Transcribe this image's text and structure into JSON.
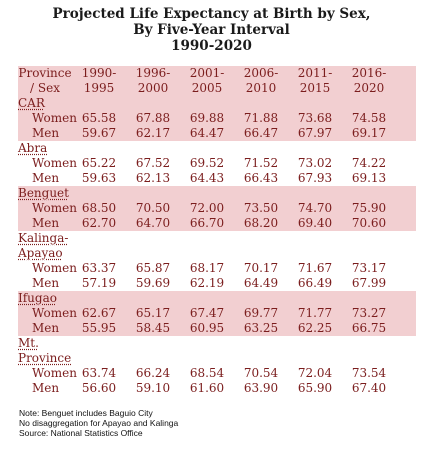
{
  "title": {
    "line1": "Projected Life Expectancy at Birth by Sex,",
    "line2": "By Five-Year Interval",
    "line3": "1990-2020"
  },
  "header": {
    "col0_line1": "Province",
    "col0_line2": "/ Sex",
    "periods": [
      {
        "line1": "1990-",
        "line2": "1995"
      },
      {
        "line1": "1996-",
        "line2": "2000"
      },
      {
        "line1": "2001-",
        "line2": "2005"
      },
      {
        "line1": "2006-",
        "line2": "2010"
      },
      {
        "line1": "2011-",
        "line2": "2015"
      },
      {
        "line1": "2016-",
        "line2": "2020"
      }
    ]
  },
  "provinces": [
    {
      "name": "CAR",
      "women": [
        "65.58",
        "67.88",
        "69.88",
        "71.88",
        "73.68",
        "74.58"
      ],
      "men": [
        "59.67",
        "62.17",
        "64.47",
        "66.47",
        "67.97",
        "69.17"
      ]
    },
    {
      "name": "Abra",
      "women": [
        "65.22",
        "67.52",
        "69.52",
        "71.52",
        "73.02",
        "74.22"
      ],
      "men": [
        "59.63",
        "62.13",
        "64.43",
        "66.43",
        "67.93",
        "69.13"
      ]
    },
    {
      "name": "Benguet",
      "women": [
        "68.50",
        "70.50",
        "72.00",
        "73.50",
        "74.70",
        "75.90"
      ],
      "men": [
        "62.70",
        "64.70",
        "66.70",
        "68.20",
        "69.40",
        "70.60"
      ]
    },
    {
      "name_line1": "Kalinga-",
      "name_line2": "Apayao",
      "women": [
        "63.37",
        "65.87",
        "68.17",
        "70.17",
        "71.67",
        "73.17"
      ],
      "men": [
        "57.19",
        "59.69",
        "62.19",
        "64.49",
        "66.49",
        "67.99"
      ]
    },
    {
      "name": "Ifugao",
      "women": [
        "62.67",
        "65.17",
        "67.47",
        "69.77",
        "71.77",
        "73.27"
      ],
      "men": [
        "55.95",
        "58.45",
        "60.95",
        "63.25",
        "62.25",
        "66.75"
      ]
    },
    {
      "name_line1": "Mt.",
      "name_line2": "Province",
      "women": [
        "63.74",
        "66.24",
        "68.54",
        "70.54",
        "72.04",
        "73.54"
      ],
      "men": [
        "56.60",
        "59.10",
        "61.60",
        "63.90",
        "65.90",
        "67.40"
      ]
    }
  ],
  "sex_labels": {
    "women": "Women",
    "men": "Men"
  },
  "notes": [
    "Note: Benguet includes Baguio City",
    "No disaggregation for Apayao and Kalinga",
    "Source: National Statistics Office"
  ],
  "colors": {
    "row_pink": "#f2cfd1",
    "text": "#7b1d1d"
  }
}
